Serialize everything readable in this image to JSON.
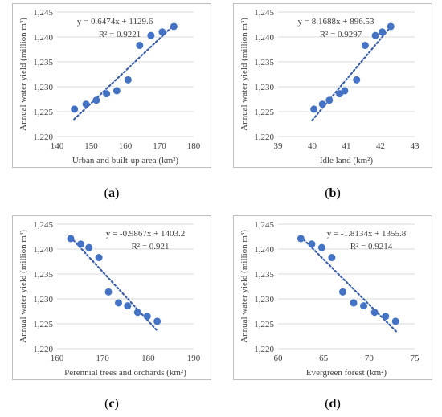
{
  "chart_data": [
    {
      "type": "scatter",
      "label": "a",
      "xlabel": "Urban and built-up area (km²)",
      "ylabel": "Annual water yield (million m³)",
      "xlim": [
        140,
        180
      ],
      "ylim": [
        1220,
        1245
      ],
      "xticks": [
        "140",
        "150",
        "160",
        "170",
        "180"
      ],
      "yticks": [
        "1,220",
        "1,225",
        "1,230",
        "1,235",
        "1,240",
        "1,245"
      ],
      "equation": "y = 0.6474x + 1129.6",
      "r2": "R² = 0.9221",
      "trend": {
        "slope": 0.6474,
        "intercept": 1129.6,
        "x_range": [
          145,
          174.5
        ]
      },
      "points": [
        {
          "x": 145.1,
          "y": 1225.5
        },
        {
          "x": 148.5,
          "y": 1226.5
        },
        {
          "x": 151.5,
          "y": 1227.3
        },
        {
          "x": 154.5,
          "y": 1228.6
        },
        {
          "x": 157.5,
          "y": 1229.2
        },
        {
          "x": 160.8,
          "y": 1231.4
        },
        {
          "x": 164.2,
          "y": 1238.3
        },
        {
          "x": 167.5,
          "y": 1240.3
        },
        {
          "x": 170.8,
          "y": 1241.0
        },
        {
          "x": 174.2,
          "y": 1242.1
        }
      ]
    },
    {
      "type": "scatter",
      "label": "b",
      "xlabel": "Idle land (km²)",
      "ylabel": "Annual water yield (million m³)",
      "xlim": [
        39,
        43
      ],
      "ylim": [
        1220,
        1245
      ],
      "xticks": [
        "39",
        "40",
        "41",
        "42",
        "43"
      ],
      "yticks": [
        "1,220",
        "1,225",
        "1,230",
        "1,235",
        "1,240",
        "1,245"
      ],
      "equation": "y = 8.1688x + 896.53",
      "r2": "R² = 0.9297",
      "trend": {
        "slope": 8.1688,
        "intercept": 896.53,
        "x_range": [
          40.0,
          42.35
        ]
      },
      "points": [
        {
          "x": 40.05,
          "y": 1225.5
        },
        {
          "x": 40.3,
          "y": 1226.5
        },
        {
          "x": 40.5,
          "y": 1227.3
        },
        {
          "x": 40.8,
          "y": 1228.6
        },
        {
          "x": 40.95,
          "y": 1229.2
        },
        {
          "x": 41.3,
          "y": 1231.4
        },
        {
          "x": 41.55,
          "y": 1238.3
        },
        {
          "x": 41.85,
          "y": 1240.3
        },
        {
          "x": 42.05,
          "y": 1241.0
        },
        {
          "x": 42.3,
          "y": 1242.1
        }
      ]
    },
    {
      "type": "scatter",
      "label": "c",
      "xlabel": "Perennial trees and orchards (km²)",
      "ylabel": "Annual water yield (million m³)",
      "xlim": [
        160,
        190
      ],
      "ylim": [
        1220,
        1245
      ],
      "xticks": [
        "160",
        "170",
        "180",
        "190"
      ],
      "yticks": [
        "1,220",
        "1,225",
        "1,230",
        "1,235",
        "1,240",
        "1,245"
      ],
      "equation": "y = -0.9867x + 1403.2",
      "r2": "R² = 0.921",
      "trend": {
        "slope": -0.9867,
        "intercept": 1403.2,
        "x_range": [
          163,
          182
        ]
      },
      "points": [
        {
          "x": 163.0,
          "y": 1242.1
        },
        {
          "x": 165.2,
          "y": 1241.0
        },
        {
          "x": 167.0,
          "y": 1240.3
        },
        {
          "x": 169.2,
          "y": 1238.3
        },
        {
          "x": 171.3,
          "y": 1231.4
        },
        {
          "x": 173.5,
          "y": 1229.2
        },
        {
          "x": 175.5,
          "y": 1228.6
        },
        {
          "x": 177.7,
          "y": 1227.3
        },
        {
          "x": 179.8,
          "y": 1226.5
        },
        {
          "x": 182.0,
          "y": 1225.5
        }
      ]
    },
    {
      "type": "scatter",
      "label": "d",
      "xlabel": "Evergreen forest (km²)",
      "ylabel": "Annual water yield (million m³)",
      "xlim": [
        60,
        75
      ],
      "ylim": [
        1220,
        1245
      ],
      "xticks": [
        "60",
        "65",
        "70",
        "75"
      ],
      "yticks": [
        "1,220",
        "1,225",
        "1,230",
        "1,235",
        "1,240",
        "1,245"
      ],
      "equation": "y = -1.8134x + 1355.8",
      "r2": "R² = 0.9214",
      "trend": {
        "slope": -1.8134,
        "intercept": 1355.8,
        "x_range": [
          62.5,
          73
        ]
      },
      "points": [
        {
          "x": 62.5,
          "y": 1242.1
        },
        {
          "x": 63.7,
          "y": 1241.0
        },
        {
          "x": 64.8,
          "y": 1240.3
        },
        {
          "x": 65.9,
          "y": 1238.3
        },
        {
          "x": 67.1,
          "y": 1231.4
        },
        {
          "x": 68.3,
          "y": 1229.2
        },
        {
          "x": 69.4,
          "y": 1228.6
        },
        {
          "x": 70.6,
          "y": 1227.3
        },
        {
          "x": 71.8,
          "y": 1226.5
        },
        {
          "x": 72.9,
          "y": 1225.5
        }
      ]
    }
  ],
  "colors": {
    "marker": "#4472c4",
    "trend": "#3b5fa8",
    "grid": "#d9d9d9",
    "text": "#404040"
  }
}
